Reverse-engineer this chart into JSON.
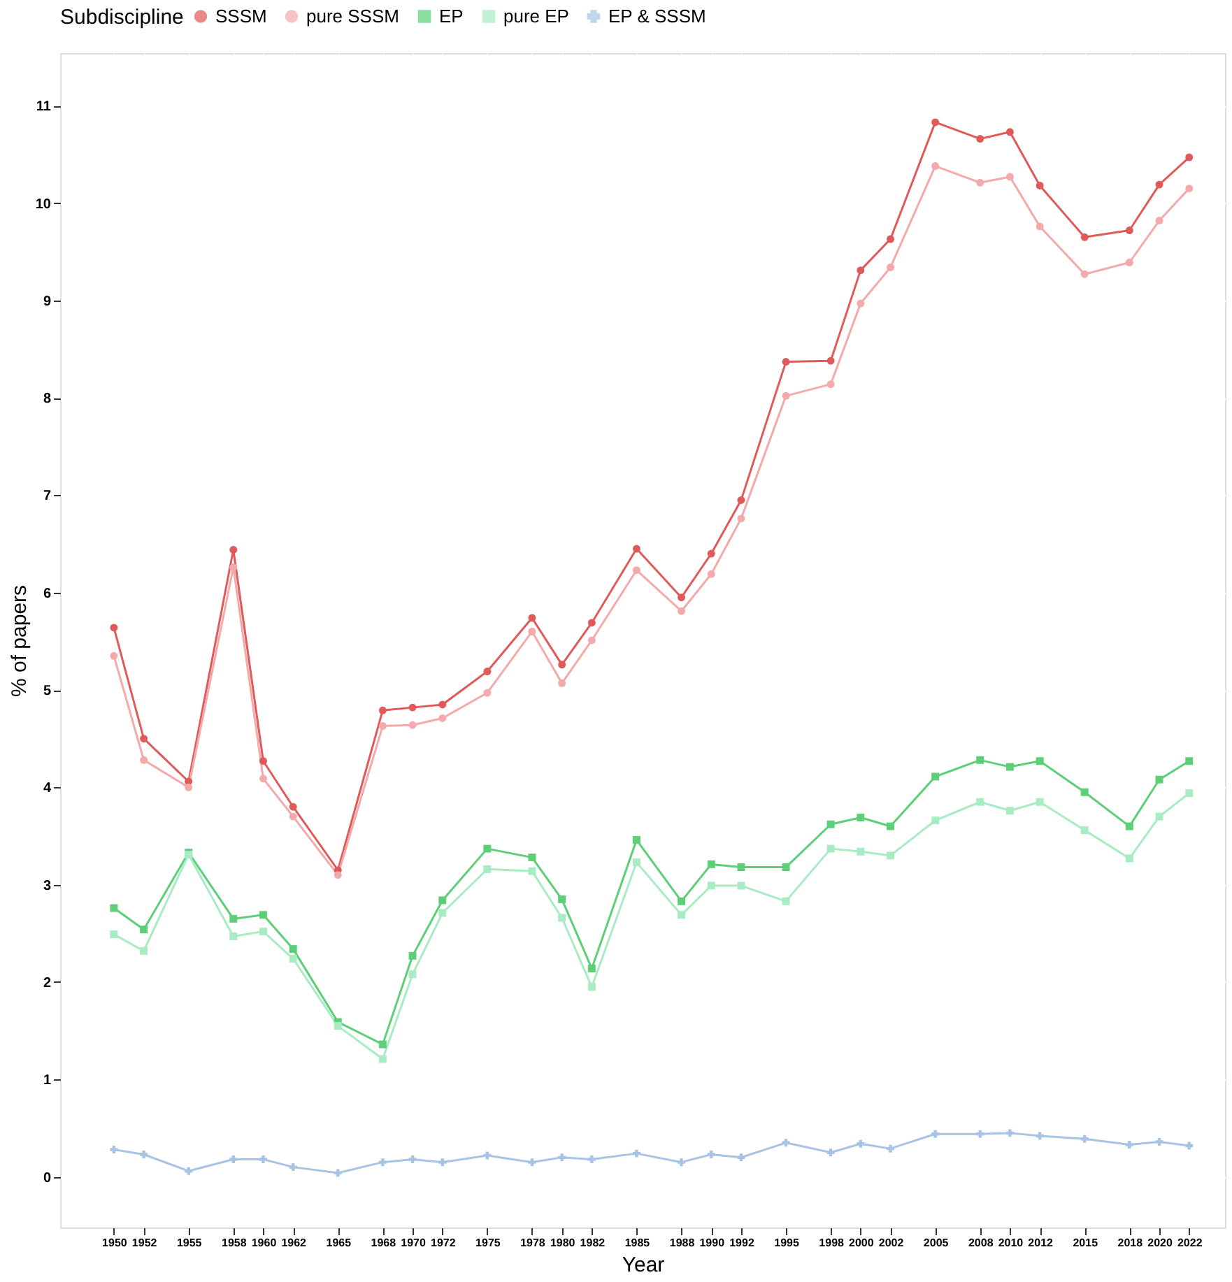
{
  "chart_data": {
    "type": "line",
    "xlabel": "Year",
    "ylabel": "% of papers",
    "legend_title": "Subdiscipline",
    "legend": "top",
    "grid": true,
    "x": [
      1950,
      1952,
      1955,
      1958,
      1960,
      1962,
      1965,
      1968,
      1970,
      1972,
      1975,
      1978,
      1980,
      1982,
      1985,
      1988,
      1990,
      1992,
      1995,
      1998,
      2000,
      2002,
      2005,
      2008,
      2010,
      2012,
      2015,
      2018,
      2020,
      2022
    ],
    "xlim": [
      1946.4,
      2024.4
    ],
    "xticks": [
      1950,
      1952,
      1955,
      1958,
      1960,
      1962,
      1965,
      1968,
      1970,
      1972,
      1975,
      1978,
      1980,
      1982,
      1985,
      1988,
      1990,
      1992,
      1995,
      1998,
      2000,
      2002,
      2005,
      2008,
      2010,
      2012,
      2015,
      2018,
      2020,
      2022
    ],
    "ylim": [
      -0.52,
      11.54
    ],
    "yticks": [
      0,
      1,
      2,
      3,
      4,
      5,
      6,
      7,
      8,
      9,
      10,
      11
    ],
    "series": [
      {
        "name": "SSSM",
        "color": "#e05a5a",
        "marker": "circle",
        "values": [
          5.64,
          4.5,
          4.06,
          6.44,
          4.27,
          3.8,
          3.15,
          4.79,
          4.82,
          4.85,
          5.19,
          5.74,
          5.26,
          5.69,
          6.45,
          5.95,
          6.4,
          6.95,
          8.37,
          8.38,
          9.31,
          9.63,
          10.83,
          10.66,
          10.73,
          10.18,
          9.65,
          9.72,
          10.19,
          10.47
        ]
      },
      {
        "name": "pure SSSM",
        "color": "#f4a9aa",
        "marker": "circle",
        "values": [
          5.35,
          4.28,
          4.0,
          6.26,
          4.09,
          3.7,
          3.1,
          4.63,
          4.64,
          4.71,
          4.97,
          5.6,
          5.07,
          5.51,
          6.23,
          5.81,
          6.19,
          6.76,
          8.02,
          8.14,
          8.97,
          9.34,
          10.38,
          10.21,
          10.27,
          9.76,
          9.27,
          9.39,
          9.82,
          10.15
        ]
      },
      {
        "name": "EP",
        "color": "#5ccf78",
        "marker": "square",
        "values": [
          2.76,
          2.54,
          3.33,
          2.65,
          2.69,
          2.34,
          1.59,
          1.36,
          2.27,
          2.84,
          3.37,
          3.28,
          2.85,
          2.14,
          3.46,
          2.83,
          3.21,
          3.18,
          3.18,
          3.62,
          3.69,
          3.6,
          4.11,
          4.28,
          4.21,
          4.27,
          3.95,
          3.6,
          4.08,
          4.27
        ]
      },
      {
        "name": "pure EP",
        "color": "#a8ecc4",
        "marker": "square",
        "values": [
          2.49,
          2.32,
          3.31,
          2.47,
          2.52,
          2.24,
          1.55,
          1.21,
          2.08,
          2.71,
          3.16,
          3.14,
          2.66,
          1.95,
          3.23,
          2.69,
          2.99,
          2.99,
          2.83,
          3.37,
          3.34,
          3.3,
          3.66,
          3.85,
          3.76,
          3.85,
          3.56,
          3.27,
          3.7,
          3.94
        ]
      },
      {
        "name": "EP & SSSM",
        "color": "#a8c4e4",
        "marker": "cross",
        "values": [
          0.28,
          0.23,
          0.06,
          0.18,
          0.18,
          0.1,
          0.04,
          0.15,
          0.18,
          0.15,
          0.22,
          0.15,
          0.2,
          0.18,
          0.24,
          0.15,
          0.23,
          0.2,
          0.35,
          0.25,
          0.34,
          0.29,
          0.44,
          0.44,
          0.45,
          0.42,
          0.39,
          0.33,
          0.36,
          0.32
        ]
      }
    ]
  }
}
